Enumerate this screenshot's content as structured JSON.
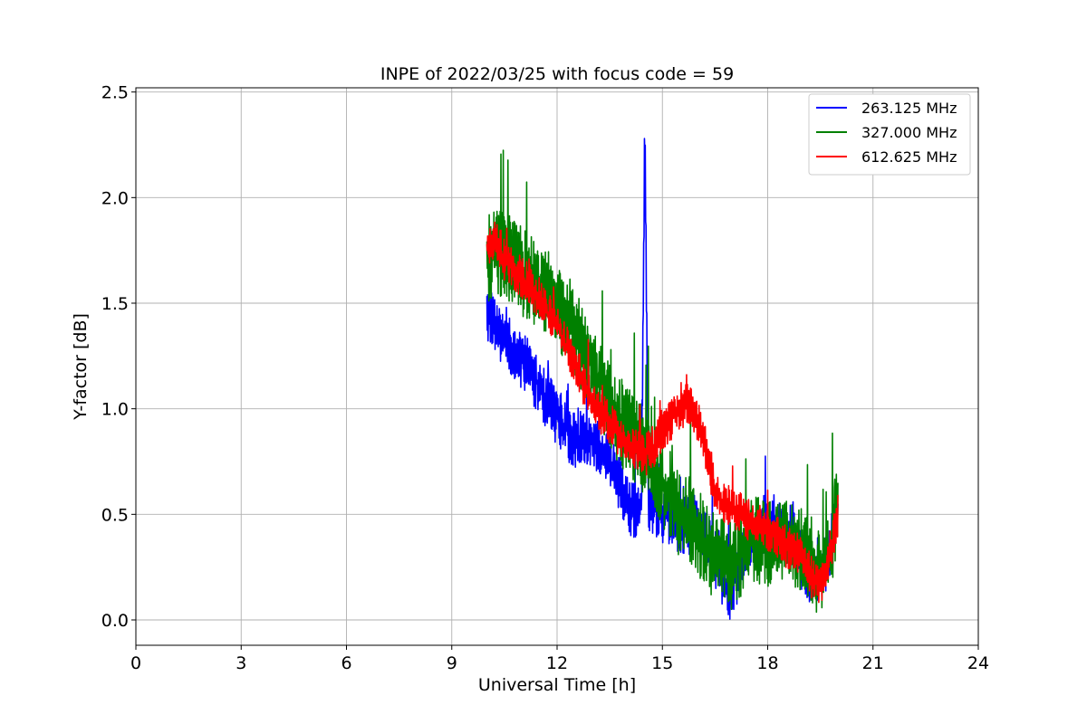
{
  "chart_data": {
    "type": "line",
    "title": "INPE of 2022/03/25 with focus code = 59",
    "xlabel": "Universal Time [h]",
    "ylabel": "Y-factor [dB]",
    "xlim": [
      0,
      24
    ],
    "ylim": [
      -0.12,
      2.52
    ],
    "xticks": [
      0,
      3,
      6,
      9,
      12,
      15,
      18,
      21,
      24
    ],
    "xtick_labels": [
      "0",
      "3",
      "6",
      "9",
      "12",
      "15",
      "18",
      "21",
      "24"
    ],
    "yticks": [
      0.0,
      0.5,
      1.0,
      1.5,
      2.0,
      2.5
    ],
    "ytick_labels": [
      "0.0",
      "0.5",
      "1.0",
      "1.5",
      "2.0",
      "2.5"
    ],
    "grid": true,
    "legend_position": "top-right",
    "series": [
      {
        "name": "263.125 MHz",
        "color": "#0000ff",
        "x": [
          10.0,
          10.25,
          10.5,
          10.75,
          11.0,
          11.25,
          11.5,
          11.75,
          12.0,
          12.25,
          12.5,
          12.75,
          13.0,
          13.25,
          13.5,
          13.75,
          14.0,
          14.25,
          14.4,
          14.5,
          14.6,
          14.75,
          15.0,
          15.25,
          15.5,
          15.75,
          16.0,
          16.25,
          16.5,
          16.75,
          17.0,
          17.25,
          17.5,
          17.75,
          18.0,
          18.25,
          18.5,
          18.75,
          19.0,
          19.25,
          19.5,
          19.75,
          20.0
        ],
        "y": [
          1.45,
          1.4,
          1.32,
          1.28,
          1.22,
          1.18,
          1.1,
          1.02,
          0.97,
          0.9,
          0.85,
          0.85,
          0.83,
          0.8,
          0.75,
          0.65,
          0.55,
          0.5,
          0.5,
          2.35,
          0.55,
          0.55,
          0.5,
          0.5,
          0.45,
          0.45,
          0.45,
          0.4,
          0.3,
          0.18,
          0.12,
          0.3,
          0.38,
          0.45,
          0.45,
          0.42,
          0.4,
          0.38,
          0.25,
          0.2,
          0.22,
          0.3,
          0.55
        ],
        "amplitude": 0.28
      },
      {
        "name": "327.000 MHz",
        "color": "#008000",
        "x": [
          10.0,
          10.25,
          10.5,
          10.75,
          11.0,
          11.25,
          11.5,
          11.75,
          12.0,
          12.25,
          12.5,
          12.75,
          13.0,
          13.25,
          13.5,
          13.75,
          14.0,
          14.25,
          14.5,
          14.75,
          15.0,
          15.25,
          15.5,
          15.75,
          16.0,
          16.25,
          16.5,
          16.75,
          17.0,
          17.25,
          17.5,
          17.75,
          18.0,
          18.25,
          18.5,
          18.75,
          19.0,
          19.25,
          19.5,
          19.75,
          20.0
        ],
        "y": [
          1.7,
          1.75,
          1.72,
          1.7,
          1.65,
          1.62,
          1.58,
          1.55,
          1.5,
          1.42,
          1.35,
          1.28,
          1.2,
          1.12,
          1.02,
          0.95,
          0.9,
          0.85,
          0.78,
          0.72,
          0.65,
          0.58,
          0.5,
          0.45,
          0.42,
          0.35,
          0.3,
          0.28,
          0.25,
          0.32,
          0.38,
          0.38,
          0.35,
          0.38,
          0.4,
          0.35,
          0.32,
          0.28,
          0.22,
          0.3,
          0.55
        ],
        "amplitude": 0.42
      },
      {
        "name": "612.625 MHz",
        "color": "#ff0000",
        "x": [
          10.0,
          10.25,
          10.5,
          10.75,
          11.0,
          11.25,
          11.5,
          11.75,
          12.0,
          12.25,
          12.5,
          12.75,
          13.0,
          13.25,
          13.5,
          13.75,
          14.0,
          14.25,
          14.5,
          14.75,
          15.0,
          15.25,
          15.5,
          15.75,
          16.0,
          16.25,
          16.5,
          16.75,
          17.0,
          17.25,
          17.5,
          17.75,
          18.0,
          18.25,
          18.5,
          18.75,
          19.0,
          19.25,
          19.5,
          19.75,
          20.0
        ],
        "y": [
          1.75,
          1.82,
          1.7,
          1.65,
          1.62,
          1.58,
          1.52,
          1.45,
          1.4,
          1.3,
          1.22,
          1.12,
          1.05,
          0.98,
          0.93,
          0.88,
          0.85,
          0.8,
          0.78,
          0.82,
          0.9,
          0.95,
          1.0,
          1.02,
          0.95,
          0.8,
          0.6,
          0.55,
          0.52,
          0.5,
          0.45,
          0.45,
          0.42,
          0.4,
          0.35,
          0.32,
          0.3,
          0.2,
          0.15,
          0.3,
          0.5
        ],
        "amplitude": 0.2
      }
    ]
  }
}
